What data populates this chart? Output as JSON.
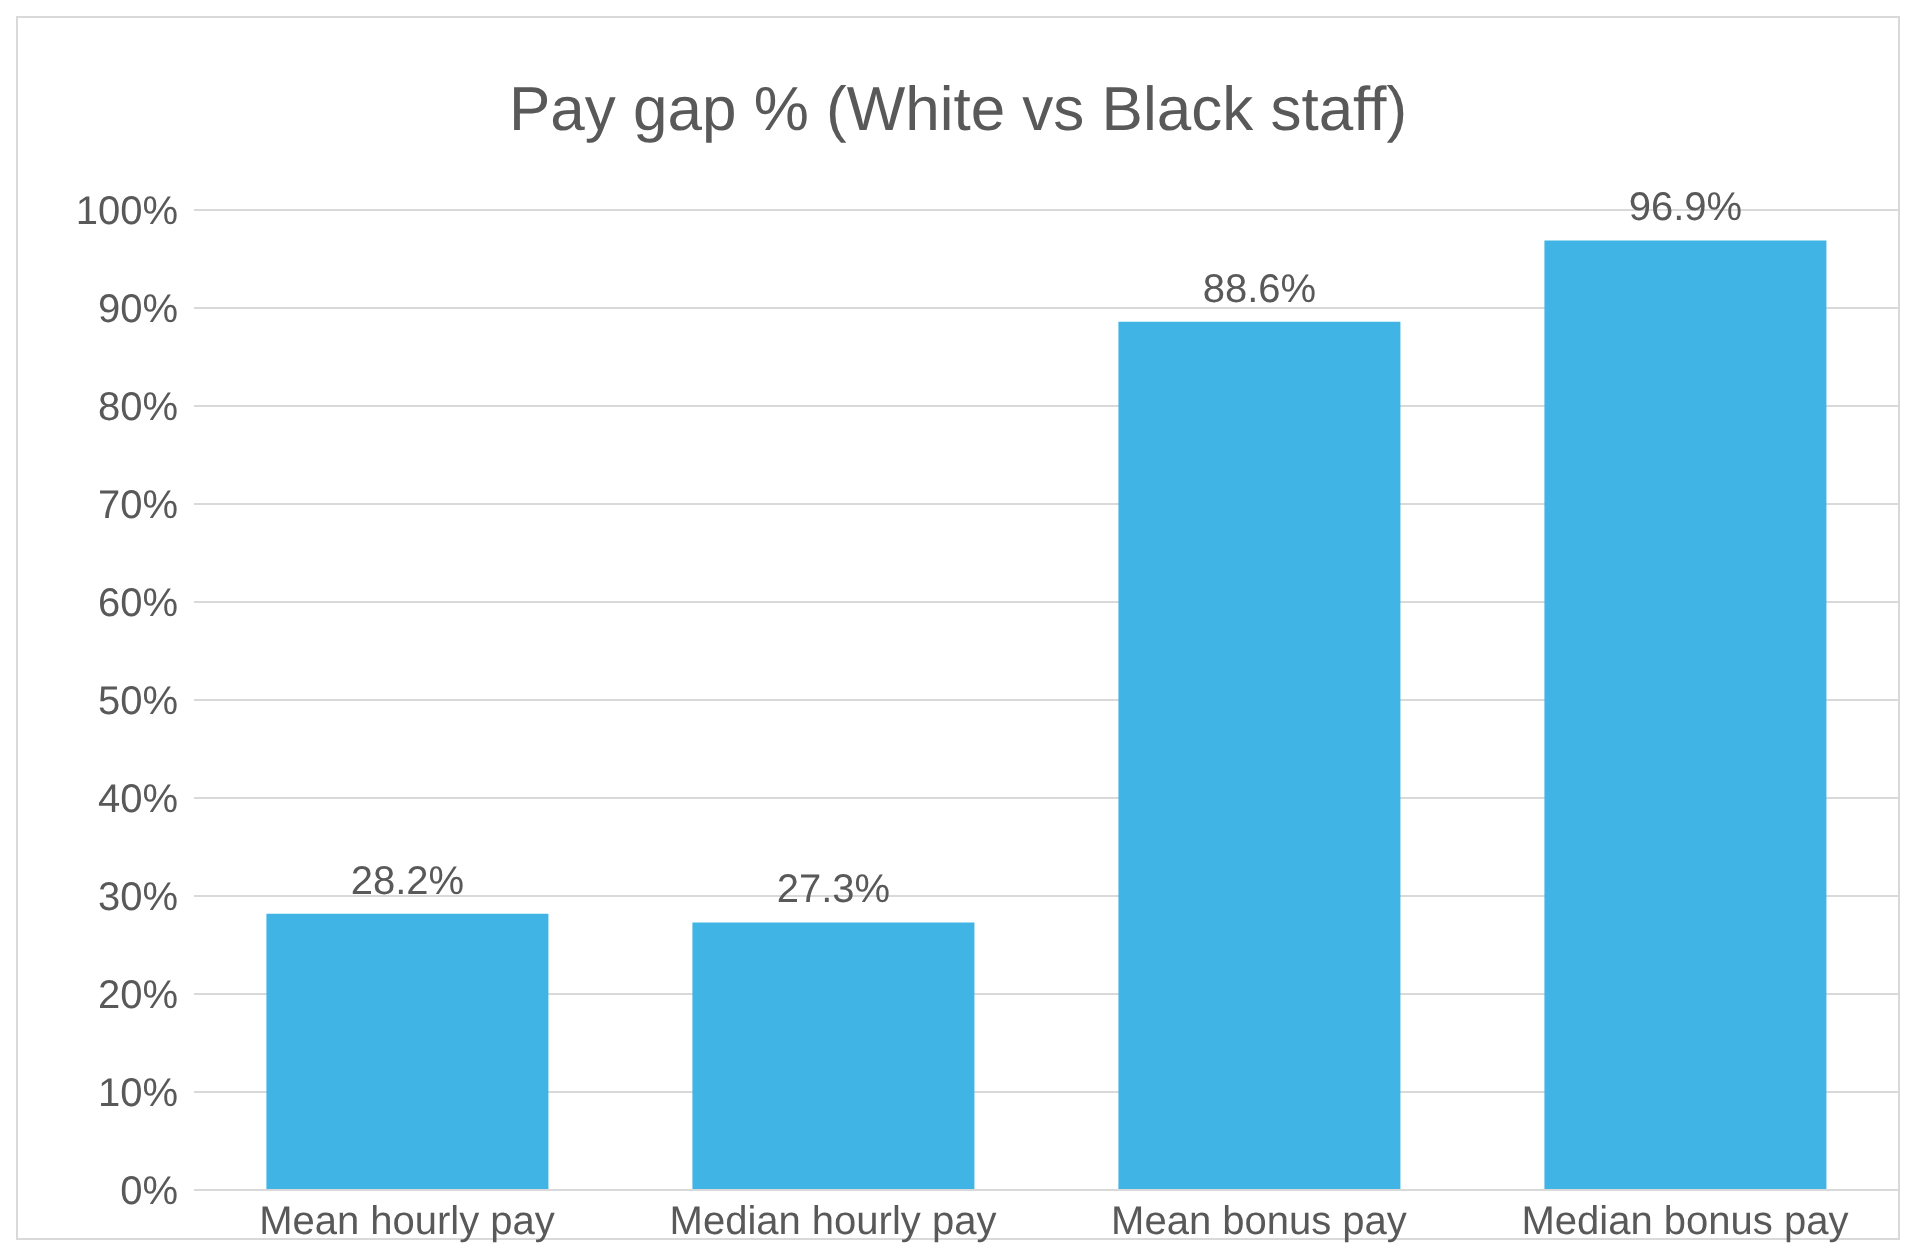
{
  "chart_data": {
    "type": "bar",
    "title": "Pay gap % (White vs Black staff)",
    "categories": [
      "Mean hourly pay",
      "Median hourly pay",
      "Mean bonus pay",
      "Median bonus pay"
    ],
    "values": [
      28.2,
      27.3,
      88.6,
      96.9
    ],
    "value_labels": [
      "28.2%",
      "27.3%",
      "88.6%",
      "96.9%"
    ],
    "color": "#41b4e6",
    "ylim": [
      0,
      100
    ],
    "yticks": [
      {
        "value": 0,
        "label": "0%"
      },
      {
        "value": 10,
        "label": "10%"
      },
      {
        "value": 20,
        "label": "20%"
      },
      {
        "value": 30,
        "label": "30%"
      },
      {
        "value": 40,
        "label": "40%"
      },
      {
        "value": 50,
        "label": "50%"
      },
      {
        "value": 60,
        "label": "60%"
      },
      {
        "value": 70,
        "label": "70%"
      },
      {
        "value": 80,
        "label": "80%"
      },
      {
        "value": 90,
        "label": "90%"
      },
      {
        "value": 100,
        "label": "100%"
      }
    ],
    "grid": "y"
  }
}
